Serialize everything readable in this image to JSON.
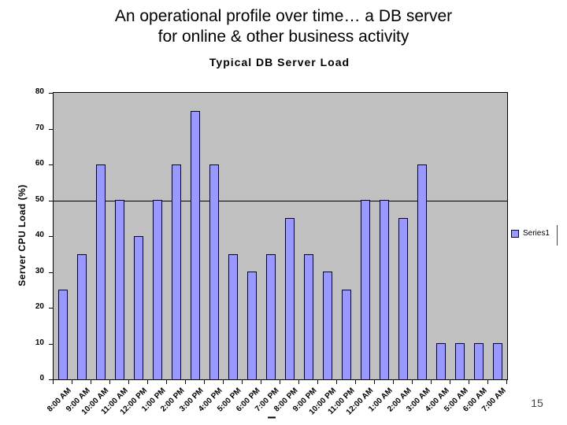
{
  "slide": {
    "title_line1": "An operational profile over time… a DB server",
    "title_line2": "for online & other business activity",
    "footer_dash": "–",
    "page_number": "15"
  },
  "chart_data": {
    "type": "bar",
    "title": "Typical DB Server Load",
    "xlabel": "",
    "ylabel": "Server CPU Load (%)",
    "categories": [
      "8:00 AM",
      "9:00 AM",
      "10:00 AM",
      "11:00 AM",
      "12:00 PM",
      "1:00 PM",
      "2:00 PM",
      "3:00 PM",
      "4:00 PM",
      "5:00 PM",
      "6:00 PM",
      "7:00 PM",
      "8:00 PM",
      "9:00 PM",
      "10:00 PM",
      "11:00 PM",
      "12:00 AM",
      "1:00 AM",
      "2:00 AM",
      "3:00 AM",
      "4:00 AM",
      "5:00 AM",
      "6:00 AM",
      "7:00 AM"
    ],
    "series": [
      {
        "name": "Series1",
        "values": [
          25,
          35,
          60,
          50,
          40,
          50,
          60,
          75,
          60,
          35,
          30,
          35,
          45,
          35,
          30,
          25,
          50,
          50,
          45,
          60,
          10,
          10,
          10,
          10
        ]
      }
    ],
    "ylim": [
      0,
      80
    ],
    "yticks": [
      0,
      10,
      20,
      30,
      40,
      50,
      60,
      70,
      80
    ],
    "gridlines_y": [
      50
    ],
    "legend_position": "right",
    "legend_labels": [
      "Series1"
    ],
    "colors": {
      "bar_fill": "#9999ff",
      "bar_border": "#000040",
      "plot_background": "#c0c0c0",
      "gridline": "#000000"
    }
  }
}
